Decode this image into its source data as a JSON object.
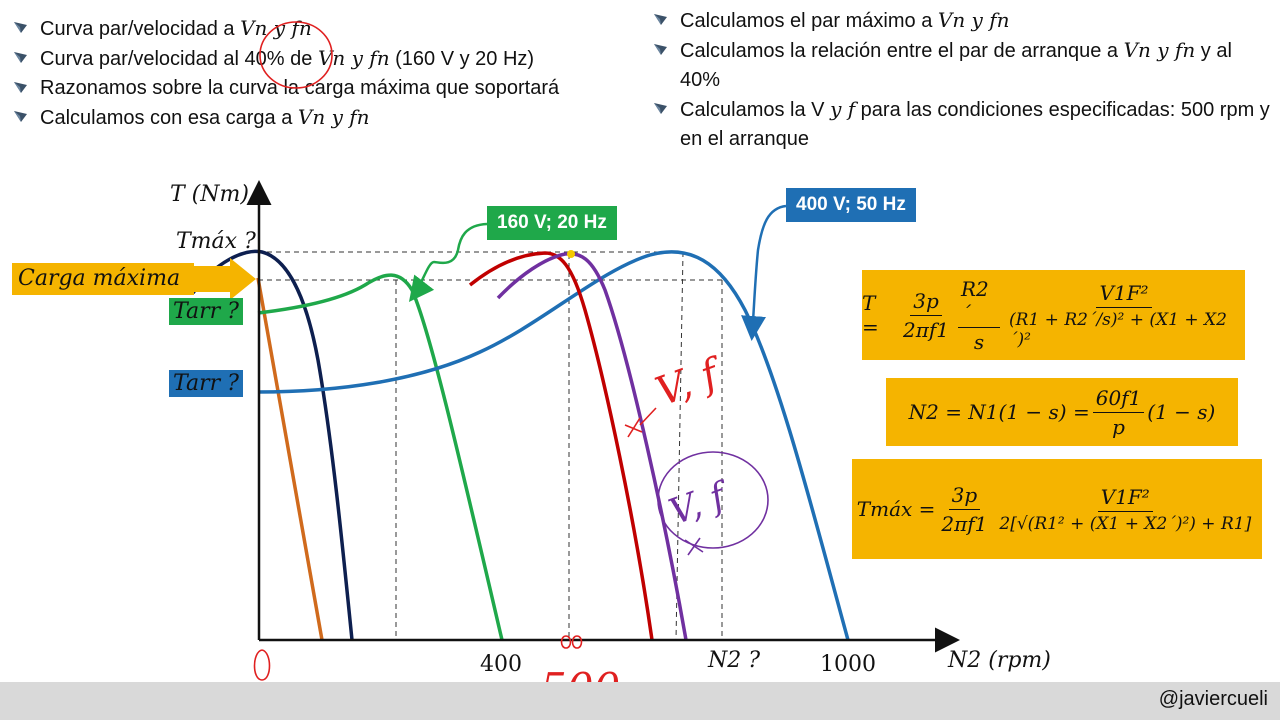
{
  "left_bullets": [
    {
      "pre": "Curva par/velocidad a ",
      "math": "Vn y fn",
      "post": ""
    },
    {
      "pre": "Curva par/velocidad al 40% de ",
      "math": "Vn y fn",
      "post": " (160 V y 20 Hz)"
    },
    {
      "pre": "Razonamos sobre la curva la carga máxima que soportará",
      "math": "",
      "post": ""
    },
    {
      "pre": "Calculamos con esa carga a ",
      "math": "Vn y fn",
      "post": ""
    }
  ],
  "right_bullets": [
    {
      "pre": "Calculamos el par máximo a ",
      "math": "Vn y fn",
      "post": ""
    },
    {
      "pre": "Calculamos la relación entre el par de arranque a ",
      "math": "Vn y fn",
      "post": " y al 40%"
    },
    {
      "pre": "Calculamos la V ",
      "math": "y f",
      "post": " para las condiciones especificadas: 500 rpm y en el arranque"
    }
  ],
  "chart": {
    "y_axis_label": "T (Nm)",
    "x_axis_label": "N2 (rpm)",
    "x_ticks": [
      "0",
      "400",
      "N2 ?",
      "1000"
    ],
    "annotation_500": "500",
    "y_labels": {
      "tmax": "Tmáx ?",
      "tarr_green": "Tarr ?",
      "tarr_blue": "Tarr ?"
    },
    "carga_maxima": "Carga máxima",
    "tag_160": "160 V; 20 Hz",
    "tag_400": "400 V; 50 Hz",
    "handwritten": [
      "V, f",
      "V, f"
    ]
  },
  "formulas": {
    "torque": {
      "lhs": "T =",
      "frac1_num": "3p",
      "frac1_den": "2πf1",
      "frac2_num": "R2´",
      "frac2_den": "s",
      "frac3_num": "V1F²",
      "frac3_den": "(R1 + R2´/s)² + (X1 + X2´)²"
    },
    "speed": {
      "lhs": "N2 = N1(1 − s) =",
      "frac_num": "60f1",
      "frac_den": "p",
      "rhs": "(1 − s)"
    },
    "tmax": {
      "lhs": "Tmáx =",
      "frac1_num": "3p",
      "frac1_den": "2πf1",
      "frac2_num": "V1F²",
      "frac2_den": "2[√(R1² + (X1 + X2´)²) + R1]"
    }
  },
  "colors": {
    "nominal_curve": "#1f6fb4",
    "curve_40pct": "#1fa84a",
    "dark_curve": "#0d1f4f",
    "orange_curve": "#d06a1c",
    "red_curve": "#c00000",
    "purple_curve": "#7030a0",
    "formula_bg": "#f5b400"
  },
  "footer": {
    "handle": "@javiercueli"
  }
}
